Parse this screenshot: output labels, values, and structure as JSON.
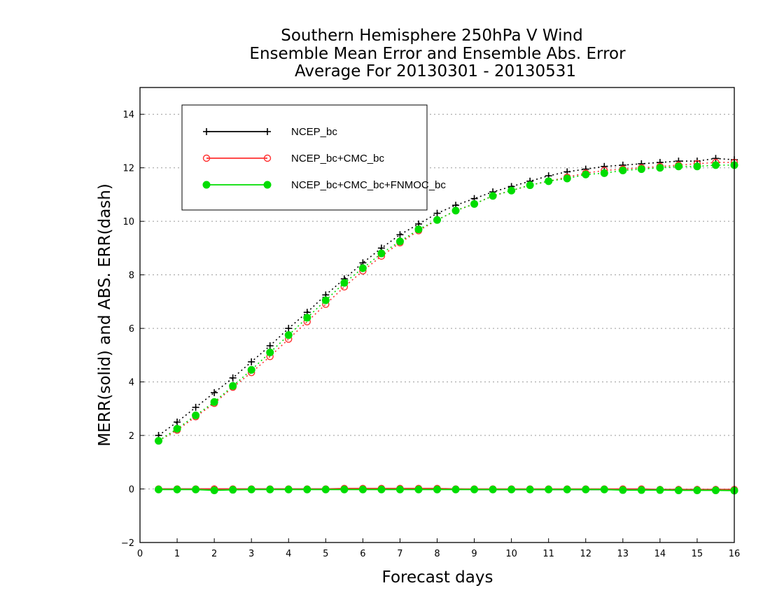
{
  "chart_data": {
    "type": "line",
    "title_lines": [
      "Southern Hemisphere 250hPa V Wind",
      "Ensemble Mean Error and Ensemble Abs. Error",
      "Average For 20130301 - 20130531"
    ],
    "xlabel": "Forecast days",
    "ylabel": "MERR(solid) and ABS. ERR(dash)",
    "xlim": [
      0,
      16
    ],
    "ylim": [
      -2,
      15
    ],
    "xticks": [
      0,
      1,
      2,
      3,
      4,
      5,
      6,
      7,
      8,
      9,
      10,
      11,
      12,
      13,
      14,
      15,
      16
    ],
    "yticks": [
      -2,
      0,
      2,
      4,
      6,
      8,
      10,
      12,
      14
    ],
    "grid": "horizontal dotted",
    "legend_position": "top-left",
    "x": [
      0.5,
      1,
      1.5,
      2,
      2.5,
      3,
      3.5,
      4,
      4.5,
      5,
      5.5,
      6,
      6.5,
      7,
      7.5,
      8,
      8.5,
      9,
      9.5,
      10,
      10.5,
      11,
      11.5,
      12,
      12.5,
      13,
      13.5,
      14,
      14.5,
      15,
      15.5,
      16
    ],
    "series": [
      {
        "name": "NCEP_bc",
        "color": "#000000",
        "marker": "plus",
        "abs_err": [
          2.0,
          2.5,
          3.05,
          3.6,
          4.15,
          4.75,
          5.35,
          6.0,
          6.6,
          7.25,
          7.85,
          8.45,
          9.0,
          9.5,
          9.9,
          10.3,
          10.6,
          10.85,
          11.1,
          11.3,
          11.5,
          11.7,
          11.85,
          11.95,
          12.05,
          12.1,
          12.15,
          12.2,
          12.25,
          12.25,
          12.35,
          12.3
        ],
        "mean_err": [
          0.0,
          0.0,
          0.0,
          0.0,
          0.0,
          0.0,
          0.0,
          0.0,
          0.0,
          0.0,
          0.0,
          0.0,
          0.0,
          0.0,
          0.0,
          0.0,
          0.0,
          -0.02,
          -0.02,
          -0.02,
          -0.02,
          -0.02,
          -0.02,
          -0.02,
          -0.02,
          -0.02,
          -0.02,
          -0.02,
          -0.02,
          -0.02,
          -0.02,
          -0.02
        ]
      },
      {
        "name": "NCEP_bc+CMC_bc",
        "color": "#ff3030",
        "marker": "open-circle",
        "abs_err": [
          1.8,
          2.2,
          2.7,
          3.2,
          3.8,
          4.35,
          4.95,
          5.6,
          6.25,
          6.9,
          7.55,
          8.15,
          8.7,
          9.2,
          9.65,
          10.05,
          10.4,
          10.65,
          10.95,
          11.15,
          11.35,
          11.5,
          11.65,
          11.8,
          11.9,
          11.95,
          12.0,
          12.05,
          12.1,
          12.15,
          12.2,
          12.2
        ],
        "mean_err": [
          0.0,
          0.0,
          0.0,
          0.0,
          0.0,
          0.0,
          0.0,
          0.0,
          0.0,
          0.0,
          0.02,
          0.02,
          0.02,
          0.02,
          0.02,
          0.02,
          0.0,
          0.0,
          0.0,
          0.0,
          0.0,
          0.0,
          0.0,
          0.0,
          0.0,
          0.0,
          0.0,
          -0.02,
          -0.02,
          -0.02,
          -0.02,
          -0.02
        ]
      },
      {
        "name": "NCEP_bc+CMC_bc+FNMOC_bc",
        "color": "#00dd00",
        "marker": "filled-circle",
        "abs_err": [
          1.8,
          2.25,
          2.75,
          3.25,
          3.85,
          4.45,
          5.1,
          5.75,
          6.4,
          7.05,
          7.7,
          8.25,
          8.8,
          9.25,
          9.7,
          10.05,
          10.4,
          10.65,
          10.95,
          11.15,
          11.35,
          11.5,
          11.6,
          11.75,
          11.8,
          11.9,
          11.95,
          12.0,
          12.05,
          12.05,
          12.1,
          12.1
        ],
        "mean_err": [
          -0.02,
          -0.02,
          -0.02,
          -0.05,
          -0.03,
          -0.02,
          -0.02,
          -0.02,
          -0.02,
          -0.02,
          -0.02,
          -0.02,
          -0.02,
          -0.02,
          -0.02,
          -0.02,
          -0.02,
          -0.02,
          -0.02,
          -0.02,
          -0.02,
          -0.02,
          -0.02,
          -0.02,
          -0.02,
          -0.04,
          -0.04,
          -0.04,
          -0.05,
          -0.05,
          -0.05,
          -0.06
        ]
      }
    ]
  }
}
